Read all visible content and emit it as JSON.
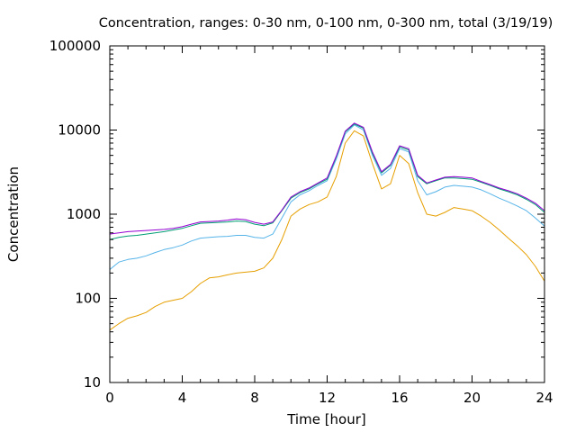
{
  "chart_data": {
    "type": "line",
    "title": "Concentration, ranges: 0-30 nm, 0-100 nm, 0-300 nm, total (3/19/19)",
    "xlabel": "Time [hour]",
    "ylabel": "Concentration",
    "xlim": [
      0,
      24
    ],
    "ylim": [
      10,
      100000
    ],
    "yscale": "log",
    "grid": false,
    "legend": "none",
    "x_ticks": [
      0,
      4,
      8,
      12,
      16,
      20,
      24
    ],
    "x_tick_labels": [
      "0",
      "4",
      "8",
      "12",
      "16",
      "20",
      "24"
    ],
    "y_ticks": [
      10,
      100,
      1000,
      10000,
      100000
    ],
    "y_tick_labels": [
      "10",
      "100",
      "1000",
      "10000",
      "100000"
    ],
    "series": [
      {
        "color": "#e69f00",
        "x": [
          0,
          0.5,
          1,
          1.5,
          2,
          2.5,
          3,
          3.5,
          4,
          4.5,
          5,
          5.5,
          6,
          6.5,
          7,
          7.5,
          8,
          8.5,
          9,
          9.5,
          10,
          10.5,
          11,
          11.5,
          12,
          12.5,
          13,
          13.5,
          14,
          14.5,
          15,
          15.5,
          16,
          16.5,
          17,
          17.5,
          18,
          18.5,
          19,
          19.5,
          20,
          20.5,
          21,
          21.5,
          22,
          22.5,
          23,
          23.5,
          24
        ],
        "values": [
          42,
          50,
          58,
          62,
          68,
          80,
          90,
          95,
          100,
          120,
          150,
          175,
          180,
          190,
          200,
          205,
          210,
          230,
          300,
          500,
          950,
          1150,
          1300,
          1400,
          1600,
          2800,
          7000,
          9800,
          8500,
          4000,
          2000,
          2300,
          5000,
          4000,
          1800,
          1000,
          950,
          1050,
          1200,
          1150,
          1100,
          950,
          800,
          650,
          520,
          420,
          330,
          240,
          160
        ]
      },
      {
        "color": "#56b4e9",
        "x": [
          0,
          0.5,
          1,
          1.5,
          2,
          2.5,
          3,
          3.5,
          4,
          4.5,
          5,
          5.5,
          6,
          6.5,
          7,
          7.5,
          8,
          8.5,
          9,
          9.5,
          10,
          10.5,
          11,
          11.5,
          12,
          12.5,
          13,
          13.5,
          14,
          14.5,
          15,
          15.5,
          16,
          16.5,
          17,
          17.5,
          18,
          18.5,
          19,
          19.5,
          20,
          20.5,
          21,
          21.5,
          22,
          22.5,
          23,
          23.5,
          24
        ],
        "values": [
          220,
          270,
          290,
          300,
          320,
          350,
          380,
          400,
          430,
          480,
          520,
          530,
          540,
          545,
          560,
          560,
          530,
          520,
          580,
          900,
          1400,
          1700,
          1900,
          2200,
          2500,
          4500,
          9000,
          11500,
          10000,
          5000,
          2900,
          3500,
          6000,
          5500,
          2500,
          1700,
          1850,
          2100,
          2200,
          2150,
          2100,
          1950,
          1750,
          1550,
          1400,
          1250,
          1100,
          900,
          720
        ]
      },
      {
        "color": "#009e73",
        "x": [
          0,
          0.5,
          1,
          1.5,
          2,
          2.5,
          3,
          3.5,
          4,
          4.5,
          5,
          5.5,
          6,
          6.5,
          7,
          7.5,
          8,
          8.5,
          9,
          9.5,
          10,
          10.5,
          11,
          11.5,
          12,
          12.5,
          13,
          13.5,
          14,
          14.5,
          15,
          15.5,
          16,
          16.5,
          17,
          17.5,
          18,
          18.5,
          19,
          19.5,
          20,
          20.5,
          21,
          21.5,
          22,
          22.5,
          23,
          23.5,
          24
        ],
        "values": [
          500,
          530,
          550,
          560,
          580,
          600,
          620,
          650,
          680,
          730,
          780,
          790,
          800,
          810,
          830,
          820,
          760,
          730,
          790,
          1100,
          1550,
          1800,
          2000,
          2300,
          2600,
          4800,
          9500,
          11800,
          10500,
          5300,
          3100,
          3800,
          6300,
          5800,
          2800,
          2300,
          2500,
          2700,
          2700,
          2650,
          2600,
          2400,
          2200,
          2000,
          1850,
          1700,
          1500,
          1300,
          1050
        ]
      },
      {
        "color": "#9400d3",
        "x": [
          0,
          0.5,
          1,
          1.5,
          2,
          2.5,
          3,
          3.5,
          4,
          4.5,
          5,
          5.5,
          6,
          6.5,
          7,
          7.5,
          8,
          8.5,
          9,
          9.5,
          10,
          10.5,
          11,
          11.5,
          12,
          12.5,
          13,
          13.5,
          14,
          14.5,
          15,
          15.5,
          16,
          16.5,
          17,
          17.5,
          18,
          18.5,
          19,
          19.5,
          20,
          20.5,
          21,
          21.5,
          22,
          22.5,
          23,
          23.5,
          24
        ],
        "values": [
          580,
          600,
          620,
          630,
          640,
          650,
          660,
          680,
          710,
          760,
          810,
          820,
          830,
          850,
          880,
          860,
          800,
          760,
          810,
          1120,
          1600,
          1850,
          2050,
          2350,
          2700,
          4900,
          9700,
          12100,
          10800,
          5500,
          3200,
          3900,
          6500,
          6000,
          2900,
          2350,
          2550,
          2750,
          2800,
          2750,
          2700,
          2450,
          2250,
          2050,
          1900,
          1750,
          1550,
          1350,
          1100
        ]
      }
    ]
  }
}
